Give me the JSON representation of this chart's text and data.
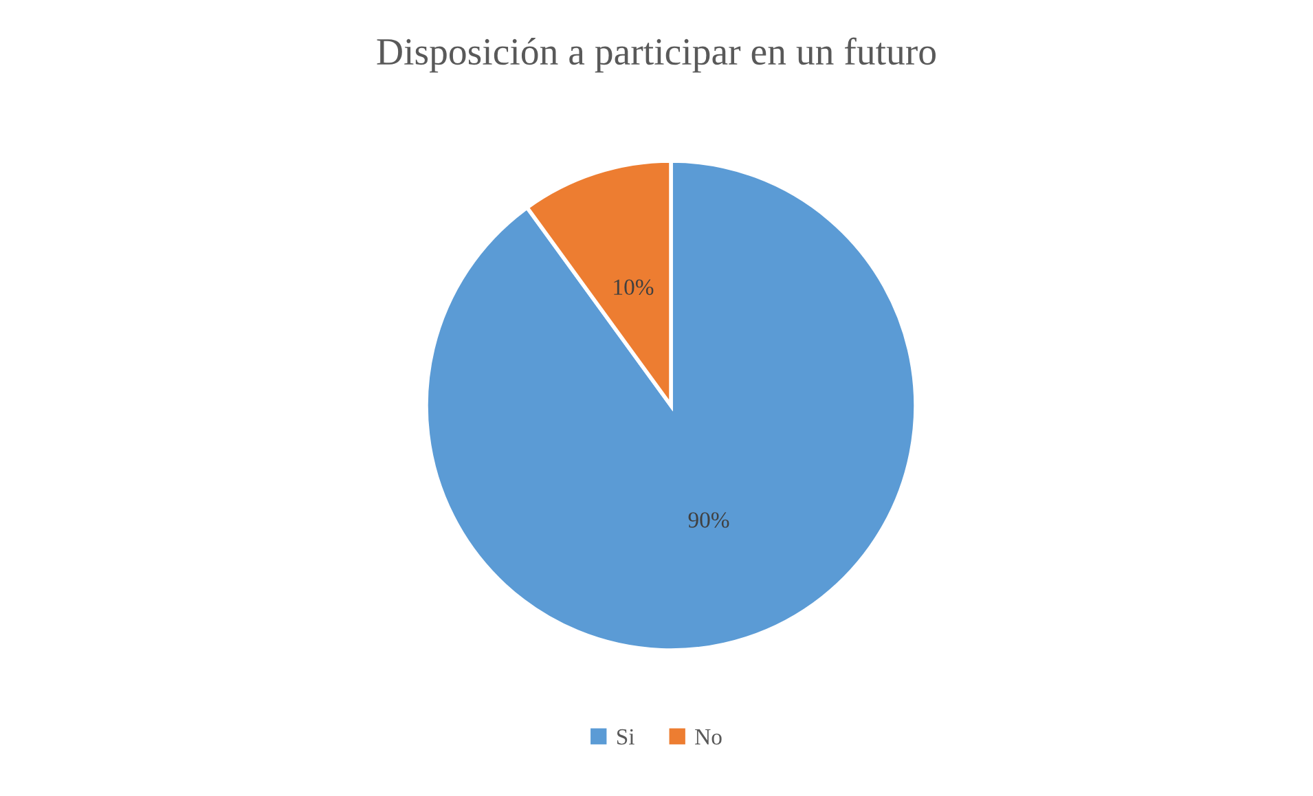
{
  "chart_data": {
    "type": "pie",
    "title": "Disposición a participar en un futuro",
    "categories": [
      "Si",
      "No"
    ],
    "values": [
      90,
      10
    ],
    "colors": [
      "#5b9bd5",
      "#ed7d31"
    ],
    "value_labels": [
      "90%",
      "10%"
    ],
    "legend": "bottom"
  }
}
